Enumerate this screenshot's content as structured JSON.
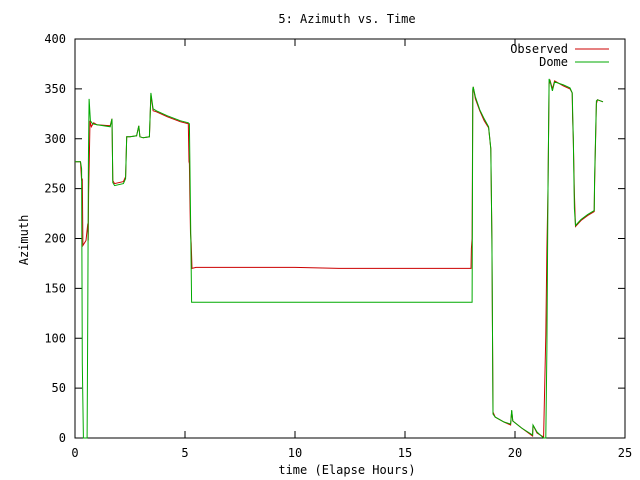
{
  "chart_data": {
    "type": "line",
    "title": "5: Azimuth vs. Time",
    "xlabel": "time (Elapse Hours)",
    "ylabel": "Azimuth",
    "xlim": [
      0,
      25
    ],
    "ylim": [
      0,
      400
    ],
    "x_ticks": [
      0,
      5,
      10,
      15,
      20,
      25
    ],
    "y_ticks": [
      0,
      50,
      100,
      150,
      200,
      250,
      300,
      350,
      400
    ],
    "x_tick_labels": [
      "0",
      "5",
      "10",
      "15",
      "20",
      "25"
    ],
    "y_tick_labels": [
      "0",
      "50",
      "100",
      "150",
      "200",
      "250",
      "300",
      "350",
      "400"
    ],
    "grid": false,
    "legend_position": "top-right",
    "series": [
      {
        "name": "Observed",
        "color": "#cc0000",
        "points": [
          [
            0.0,
            277
          ],
          [
            0.25,
            277
          ],
          [
            0.3,
            258
          ],
          [
            0.33,
            260
          ],
          [
            0.36,
            193
          ],
          [
            0.5,
            198
          ],
          [
            0.58,
            215
          ],
          [
            0.6,
            198
          ],
          [
            0.62,
            245
          ],
          [
            0.65,
            280
          ],
          [
            0.68,
            318
          ],
          [
            0.74,
            312
          ],
          [
            0.85,
            316
          ],
          [
            1.0,
            314
          ],
          [
            1.6,
            313
          ],
          [
            1.68,
            320
          ],
          [
            1.72,
            258
          ],
          [
            1.8,
            255
          ],
          [
            2.2,
            257
          ],
          [
            2.3,
            262
          ],
          [
            2.35,
            302
          ],
          [
            2.5,
            302
          ],
          [
            2.8,
            303
          ],
          [
            2.9,
            313
          ],
          [
            2.95,
            302
          ],
          [
            3.1,
            301
          ],
          [
            3.38,
            302
          ],
          [
            3.45,
            344
          ],
          [
            3.55,
            328
          ],
          [
            3.7,
            327
          ],
          [
            4.2,
            322
          ],
          [
            4.8,
            317
          ],
          [
            5.15,
            315
          ],
          [
            5.18,
            277
          ],
          [
            5.2,
            275
          ],
          [
            5.22,
            245
          ],
          [
            5.25,
            205
          ],
          [
            5.28,
            195
          ],
          [
            5.32,
            170
          ],
          [
            5.5,
            171
          ],
          [
            6.0,
            171
          ],
          [
            8.0,
            171
          ],
          [
            10.0,
            171
          ],
          [
            12.0,
            170
          ],
          [
            14.0,
            170
          ],
          [
            16.0,
            170
          ],
          [
            18.0,
            170
          ],
          [
            18.02,
            190
          ],
          [
            18.05,
            200
          ],
          [
            18.08,
            348
          ],
          [
            18.1,
            352
          ],
          [
            18.2,
            340
          ],
          [
            18.4,
            328
          ],
          [
            18.6,
            318
          ],
          [
            18.8,
            311
          ],
          [
            18.9,
            290
          ],
          [
            18.95,
            200
          ],
          [
            19.0,
            26
          ],
          [
            19.1,
            21
          ],
          [
            19.5,
            16
          ],
          [
            19.8,
            13
          ],
          [
            19.85,
            27
          ],
          [
            19.9,
            17
          ],
          [
            20.3,
            10
          ],
          [
            20.8,
            2
          ],
          [
            20.82,
            13
          ],
          [
            21.0,
            5
          ],
          [
            21.3,
            1
          ],
          [
            21.4,
            103
          ],
          [
            21.45,
            190
          ],
          [
            21.5,
            250
          ],
          [
            21.55,
            355
          ],
          [
            21.6,
            358
          ],
          [
            21.7,
            350
          ],
          [
            21.8,
            358
          ],
          [
            22.2,
            353
          ],
          [
            22.5,
            350
          ],
          [
            22.6,
            346
          ],
          [
            22.62,
            321
          ],
          [
            22.65,
            300
          ],
          [
            22.7,
            245
          ],
          [
            22.72,
            232
          ],
          [
            22.75,
            212
          ],
          [
            23.0,
            218
          ],
          [
            23.3,
            223
          ],
          [
            23.6,
            227
          ],
          [
            23.62,
            255
          ],
          [
            23.7,
            335
          ],
          [
            23.75,
            339
          ],
          [
            24.0,
            337
          ]
        ]
      },
      {
        "name": "Dome",
        "color": "#00aa00",
        "points": [
          [
            0.0,
            277
          ],
          [
            0.25,
            277
          ],
          [
            0.3,
            270
          ],
          [
            0.33,
            75
          ],
          [
            0.38,
            0
          ],
          [
            0.55,
            0
          ],
          [
            0.58,
            130
          ],
          [
            0.61,
            278
          ],
          [
            0.64,
            340
          ],
          [
            0.7,
            318
          ],
          [
            0.8,
            315
          ],
          [
            1.0,
            314
          ],
          [
            1.6,
            312
          ],
          [
            1.68,
            320
          ],
          [
            1.72,
            256
          ],
          [
            1.8,
            253
          ],
          [
            2.2,
            255
          ],
          [
            2.3,
            260
          ],
          [
            2.35,
            302
          ],
          [
            2.5,
            302
          ],
          [
            2.8,
            303
          ],
          [
            2.9,
            313
          ],
          [
            2.95,
            302
          ],
          [
            3.1,
            301
          ],
          [
            3.38,
            302
          ],
          [
            3.45,
            346
          ],
          [
            3.55,
            330
          ],
          [
            3.7,
            328
          ],
          [
            4.2,
            323
          ],
          [
            4.8,
            318
          ],
          [
            5.15,
            316
          ],
          [
            5.2,
            315
          ],
          [
            5.3,
            136
          ],
          [
            6.0,
            136
          ],
          [
            8.0,
            136
          ],
          [
            10.0,
            136
          ],
          [
            12.0,
            136
          ],
          [
            14.0,
            136
          ],
          [
            16.0,
            136
          ],
          [
            18.0,
            136
          ],
          [
            18.05,
            136
          ],
          [
            18.08,
            350
          ],
          [
            18.1,
            352
          ],
          [
            18.2,
            342
          ],
          [
            18.4,
            329
          ],
          [
            18.6,
            320
          ],
          [
            18.8,
            312
          ],
          [
            18.9,
            290
          ],
          [
            18.95,
            200
          ],
          [
            19.0,
            24
          ],
          [
            19.1,
            21
          ],
          [
            19.5,
            16
          ],
          [
            19.8,
            14
          ],
          [
            19.85,
            28
          ],
          [
            19.9,
            17
          ],
          [
            20.3,
            10
          ],
          [
            20.8,
            3
          ],
          [
            20.82,
            13
          ],
          [
            21.0,
            6
          ],
          [
            21.3,
            0
          ],
          [
            21.4,
            0
          ],
          [
            21.45,
            90
          ],
          [
            21.5,
            250
          ],
          [
            21.55,
            360
          ],
          [
            21.6,
            357
          ],
          [
            21.7,
            348
          ],
          [
            21.8,
            357
          ],
          [
            22.2,
            354
          ],
          [
            22.5,
            351
          ],
          [
            22.6,
            346
          ],
          [
            22.65,
            300
          ],
          [
            22.7,
            230
          ],
          [
            22.75,
            213
          ],
          [
            23.0,
            219
          ],
          [
            23.3,
            224
          ],
          [
            23.6,
            228
          ],
          [
            23.62,
            260
          ],
          [
            23.7,
            338
          ],
          [
            23.75,
            339
          ],
          [
            24.0,
            337
          ]
        ]
      }
    ]
  }
}
